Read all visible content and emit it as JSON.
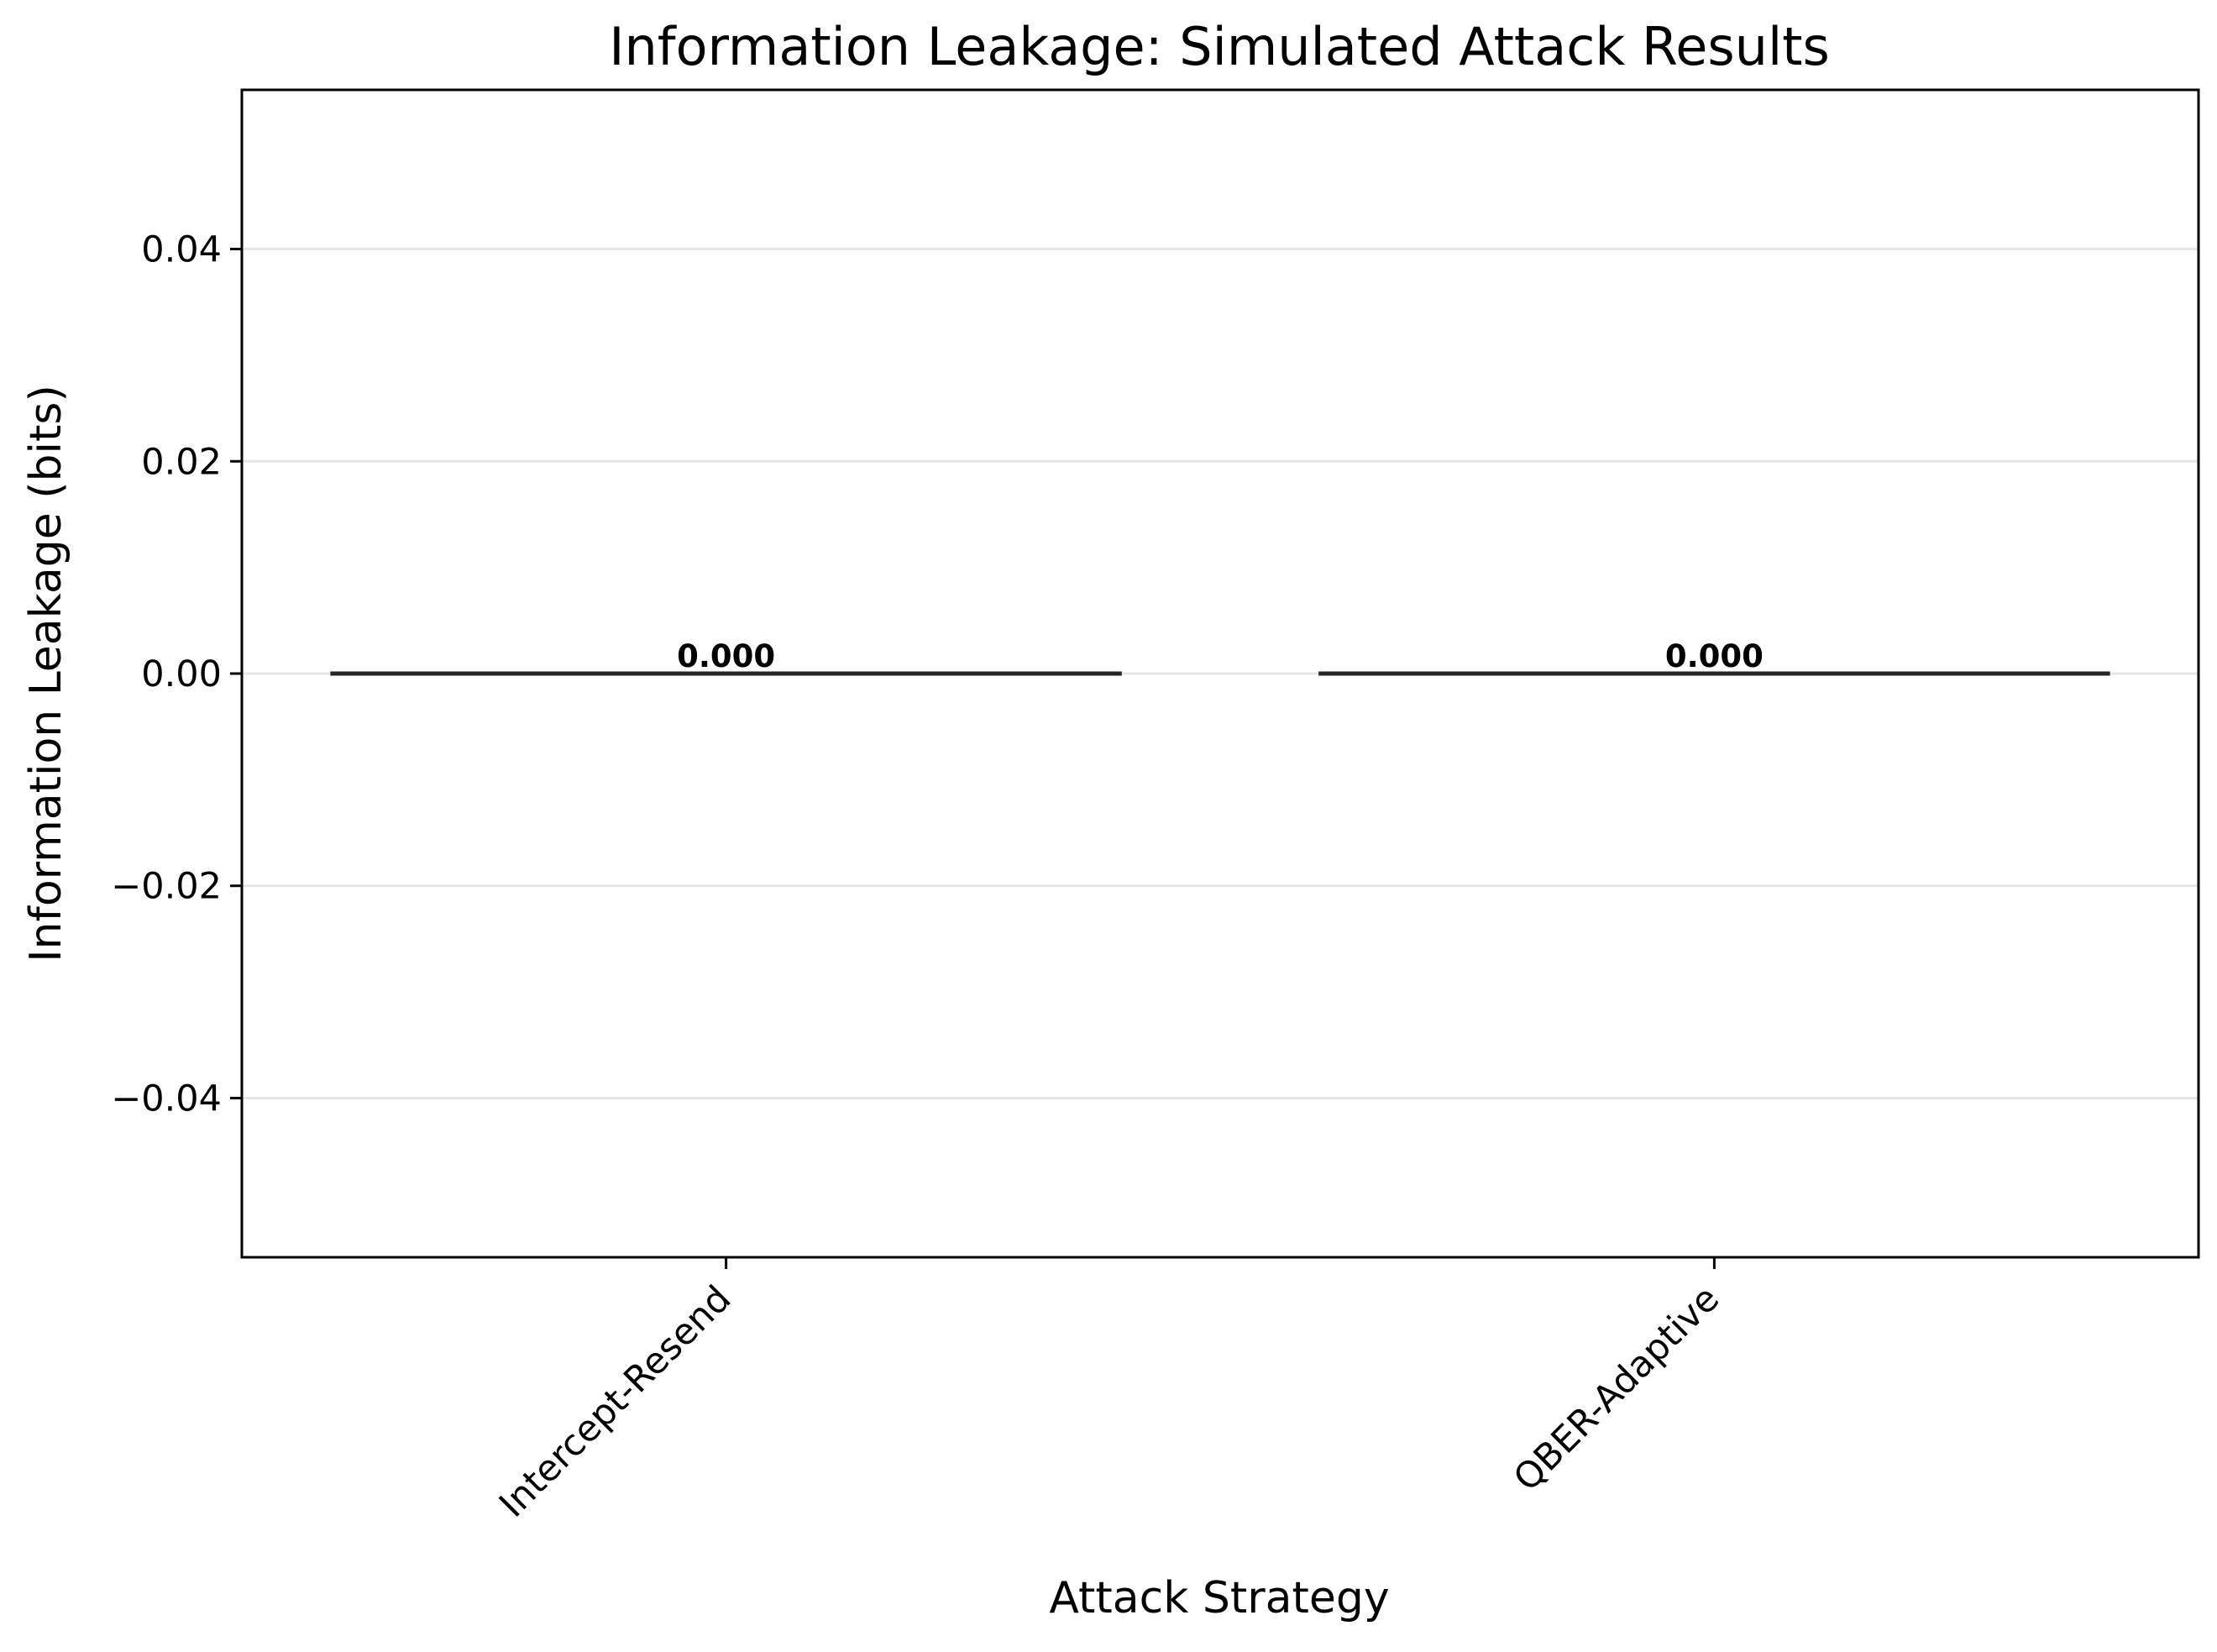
{
  "chart_data": {
    "type": "bar",
    "title": "Information Leakage: Simulated Attack Results",
    "xlabel": "Attack Strategy",
    "ylabel": "Information Leakage (bits)",
    "categories": [
      "Intercept-Resend",
      "QBER-Adaptive"
    ],
    "values": [
      0.0,
      0.0
    ],
    "data_labels": [
      "0.000",
      "0.000"
    ],
    "ylim": [
      -0.055,
      0.055
    ],
    "yticks": [
      -0.04,
      -0.02,
      0.0,
      0.02,
      0.04
    ],
    "ytick_labels": [
      "−0.04",
      "−0.02",
      "0.00",
      "0.02",
      "0.04"
    ],
    "grid": "y-major",
    "legend": "none",
    "colors": {
      "bar_edge": "#262626",
      "grid": "#e6e6e6",
      "axes": "#000000"
    }
  }
}
